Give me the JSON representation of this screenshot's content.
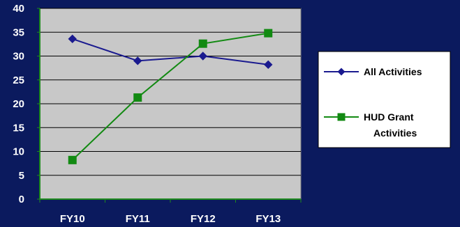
{
  "chart_data": {
    "type": "line",
    "categories": [
      "FY10",
      "FY11",
      "FY12",
      "FY13"
    ],
    "series": [
      {
        "name": "All Activities",
        "values": [
          33.6,
          29.0,
          30.0,
          28.2
        ],
        "color": "#1A1A8F",
        "marker": "diamond"
      },
      {
        "name": "HUD Grant Activities",
        "values": [
          8.2,
          21.3,
          32.6,
          34.8
        ],
        "color": "#128A12",
        "marker": "square"
      }
    ],
    "ylim": [
      0,
      40
    ],
    "yticks": [
      0,
      5,
      10,
      15,
      20,
      25,
      30,
      35,
      40
    ],
    "title": "",
    "xlabel": "",
    "ylabel": "",
    "grid": true,
    "legend_position": "right"
  },
  "legend": {
    "item1_label": "All Activities",
    "item2_line1": "HUD Grant",
    "item2_line2": "Activities"
  },
  "colors": {
    "page_background": "#0B1A5E",
    "plot_background": "#C8C8C8",
    "axis_text": "#FFFFFF",
    "legend_background": "#FFFFFF",
    "legend_text": "#000000"
  }
}
